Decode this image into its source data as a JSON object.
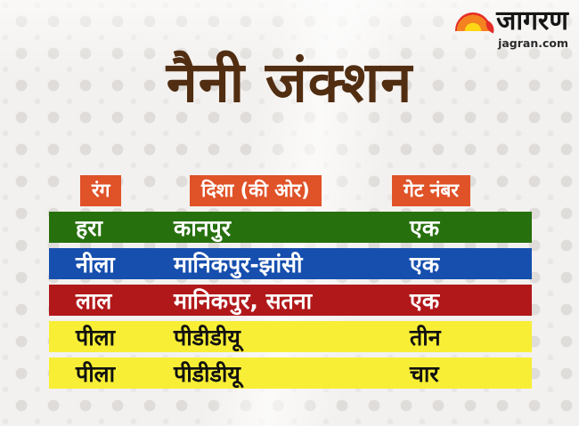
{
  "logo": {
    "brand": "जागरण",
    "site": "jagran.com",
    "icon": "jagran-sun-icon"
  },
  "title": "नैनी जंक्शन",
  "colors": {
    "header_chip": "#e05228",
    "title_text": "#512d11",
    "green": "#27700e",
    "blue": "#164fae",
    "red": "#b1181a",
    "yellow": "#f8ee35"
  },
  "table": {
    "headers": [
      {
        "label": "रंग"
      },
      {
        "label": "दिशा (की ओर)"
      },
      {
        "label": "गेट नंबर"
      }
    ],
    "rows": [
      {
        "color_name": "हरा",
        "direction": "कानपुर",
        "gate": "एक",
        "bg": "#27700e",
        "text": "#ffffff"
      },
      {
        "color_name": "नीला",
        "direction": "मानिकपुर-झांसी",
        "gate": "एक",
        "bg": "#164fae",
        "text": "#ffffff"
      },
      {
        "color_name": "लाल",
        "direction": "मानिकपुर, सतना",
        "gate": "एक",
        "bg": "#b1181a",
        "text": "#ffffff"
      },
      {
        "color_name": "पीला",
        "direction": "पीडीडीयू",
        "gate": "तीन",
        "bg": "#f8ee35",
        "text": "#111111"
      },
      {
        "color_name": "पीला",
        "direction": "पीडीडीयू",
        "gate": "चार",
        "bg": "#f8ee35",
        "text": "#111111"
      }
    ]
  },
  "chart_data": {
    "type": "table",
    "title": "नैनी जंक्शन",
    "columns": [
      "रंग",
      "दिशा (की ओर)",
      "गेट नंबर"
    ],
    "rows": [
      [
        "हरा",
        "कानपुर",
        "एक"
      ],
      [
        "नीला",
        "मानिकपुर-झांसी",
        "एक"
      ],
      [
        "लाल",
        "मानिकपुर, सतना",
        "एक"
      ],
      [
        "पीला",
        "पीडीडीयू",
        "तीन"
      ],
      [
        "पीला",
        "पीडीडीयू",
        "चार"
      ]
    ],
    "row_colors": [
      "#27700e",
      "#164fae",
      "#b1181a",
      "#f8ee35",
      "#f8ee35"
    ]
  }
}
